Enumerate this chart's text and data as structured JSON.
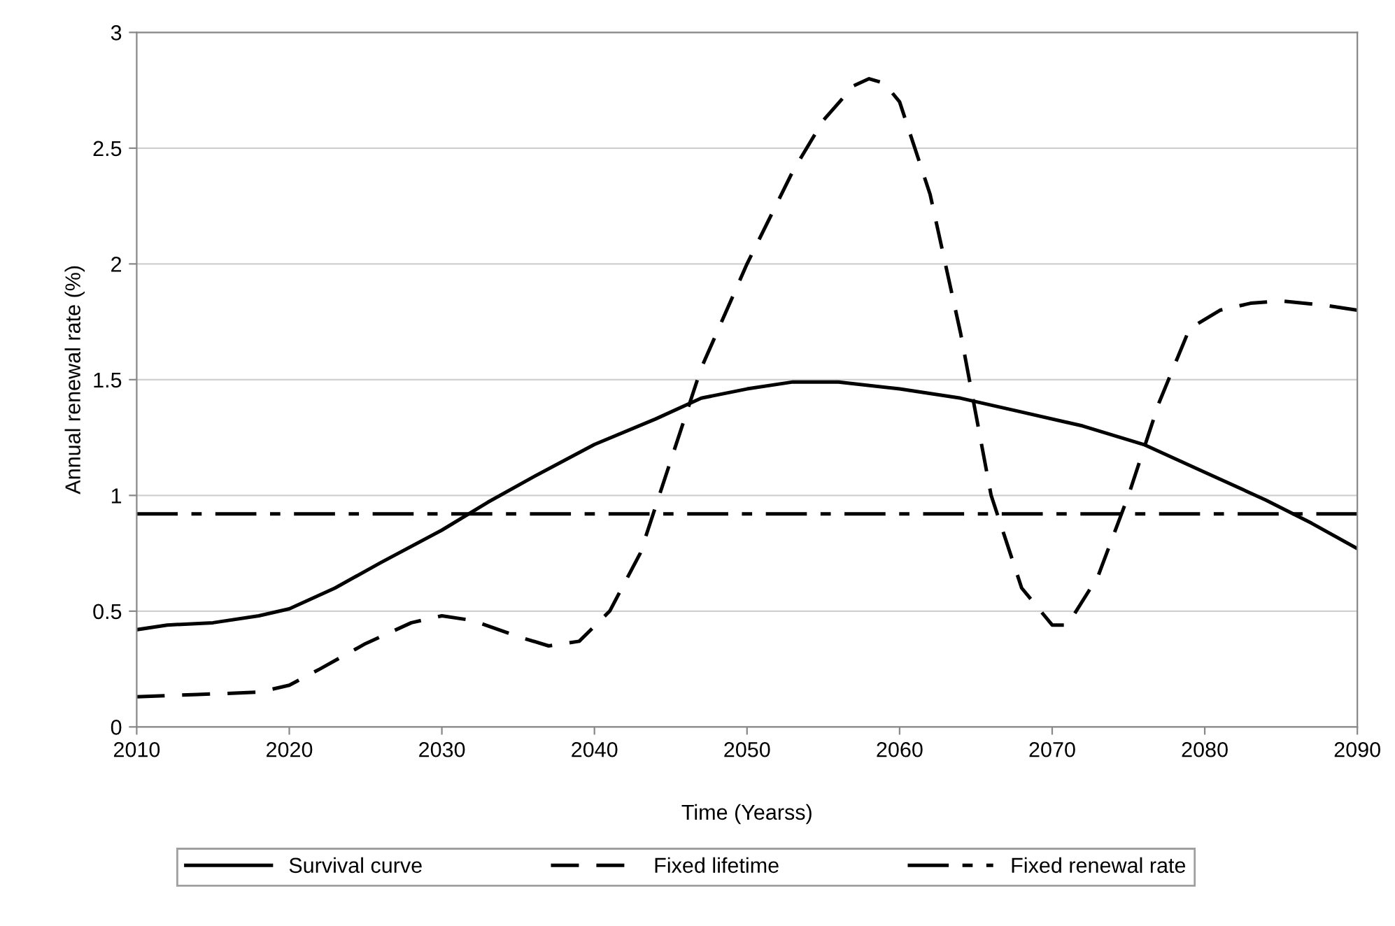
{
  "chart_data": {
    "type": "line",
    "xlabel": "Time (Yearss)",
    "ylabel": "Annual renewal rate (%)",
    "xlim": [
      2010,
      2090
    ],
    "xticks": [
      2010,
      2020,
      2030,
      2040,
      2050,
      2060,
      2070,
      2080,
      2090
    ],
    "ylim": [
      0,
      3
    ],
    "yticks": [
      0,
      0.5,
      1,
      1.5,
      2,
      2.5,
      3
    ],
    "grid": "y",
    "legend": "bottom",
    "marker": "none",
    "series": [
      {
        "name": "Survival curve",
        "color": "#000000",
        "line_style": "solid",
        "x": [
          2010,
          2012,
          2015,
          2018,
          2020,
          2023,
          2026,
          2030,
          2033,
          2036,
          2040,
          2044,
          2047,
          2050,
          2053,
          2056,
          2060,
          2064,
          2068,
          2072,
          2076,
          2080,
          2084,
          2087,
          2090
        ],
        "values": [
          0.42,
          0.44,
          0.45,
          0.48,
          0.51,
          0.6,
          0.71,
          0.85,
          0.97,
          1.08,
          1.22,
          1.33,
          1.42,
          1.46,
          1.49,
          1.49,
          1.46,
          1.42,
          1.36,
          1.3,
          1.22,
          1.1,
          0.98,
          0.88,
          0.77
        ]
      },
      {
        "name": "Fixed lifetime",
        "color": "#000000",
        "line_style": "dashed",
        "x": [
          2010,
          2014,
          2018,
          2020,
          2022,
          2025,
          2028,
          2030,
          2032,
          2035,
          2037,
          2039,
          2041,
          2043,
          2045,
          2047,
          2050,
          2053,
          2055,
          2057,
          2058,
          2059,
          2060,
          2062,
          2064,
          2066,
          2068,
          2070,
          2071,
          2073,
          2075,
          2077,
          2079,
          2081,
          2083,
          2085,
          2088,
          2090
        ],
        "values": [
          0.13,
          0.14,
          0.15,
          0.18,
          0.25,
          0.36,
          0.45,
          0.48,
          0.46,
          0.39,
          0.35,
          0.37,
          0.5,
          0.75,
          1.15,
          1.55,
          2.0,
          2.4,
          2.62,
          2.77,
          2.8,
          2.78,
          2.7,
          2.3,
          1.7,
          1.0,
          0.6,
          0.44,
          0.44,
          0.65,
          1.0,
          1.4,
          1.72,
          1.8,
          1.83,
          1.84,
          1.82,
          1.8
        ]
      },
      {
        "name": "Fixed renewal rate",
        "color": "#000000",
        "line_style": "dashdot",
        "x": [
          2010,
          2090
        ],
        "values": [
          0.92,
          0.92
        ]
      }
    ]
  }
}
